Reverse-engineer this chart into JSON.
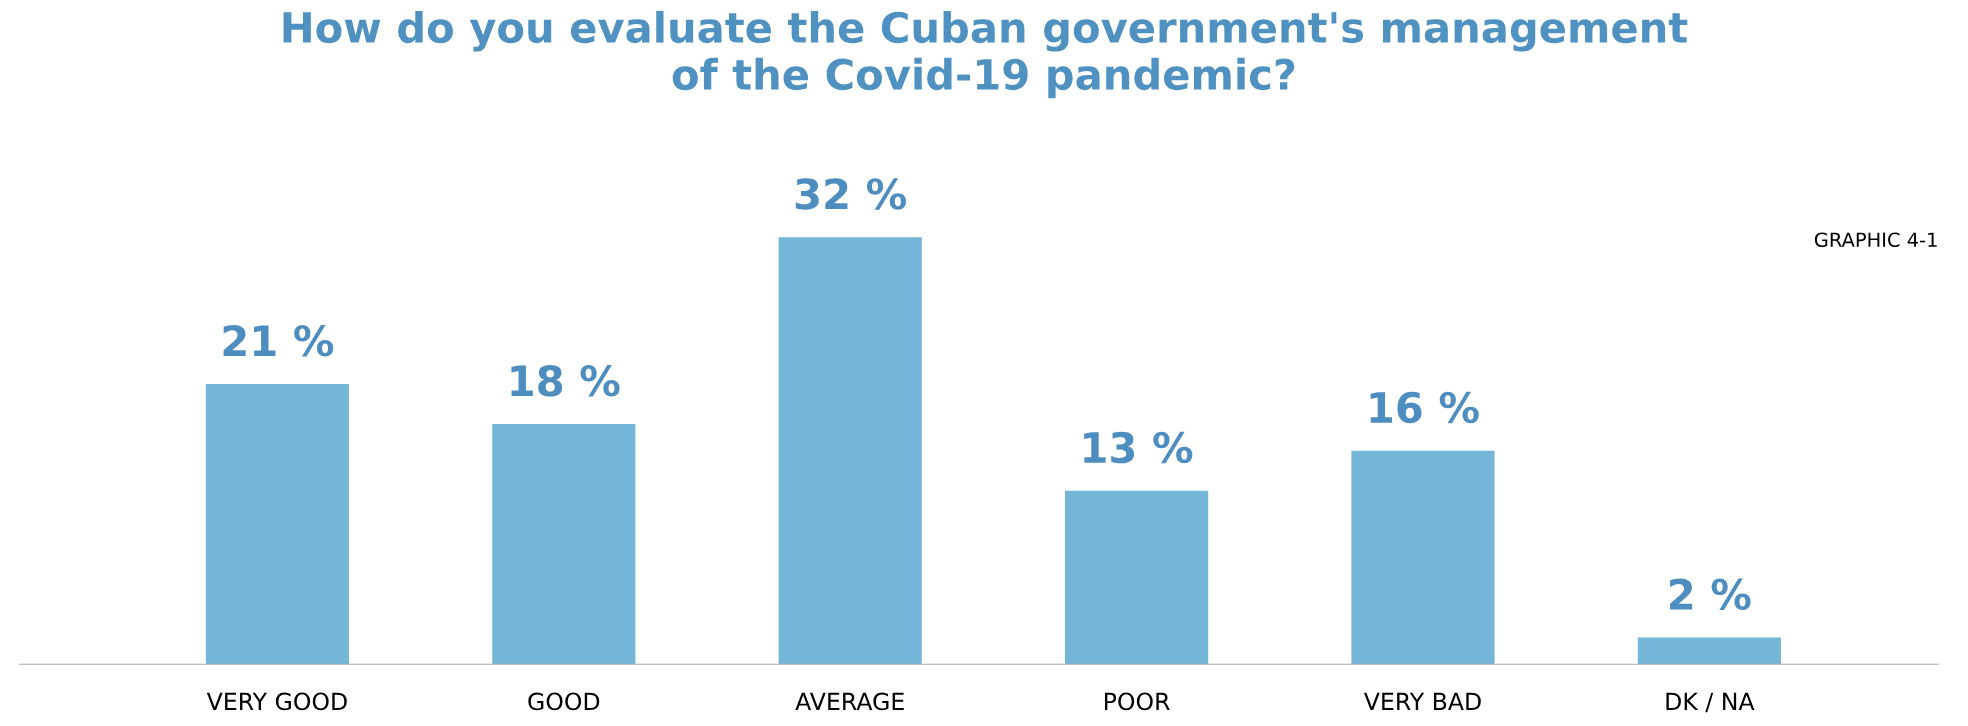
{
  "chart_data": {
    "type": "bar",
    "title": "How do you evaluate the Cuban government's management\nof the Covid-19 pandemic?",
    "categories": [
      "VERY GOOD",
      "GOOD",
      "AVERAGE",
      "POOR",
      "VERY BAD",
      "DK / NA"
    ],
    "values": [
      21,
      18,
      32,
      13,
      16,
      2
    ],
    "value_labels": [
      "21 %",
      "18 %",
      "32 %",
      "13 %",
      "16 %",
      "2 %"
    ],
    "color": "#74b6d7",
    "annotations": [
      "GRAPHIC 4-1"
    ],
    "grid": false
  }
}
